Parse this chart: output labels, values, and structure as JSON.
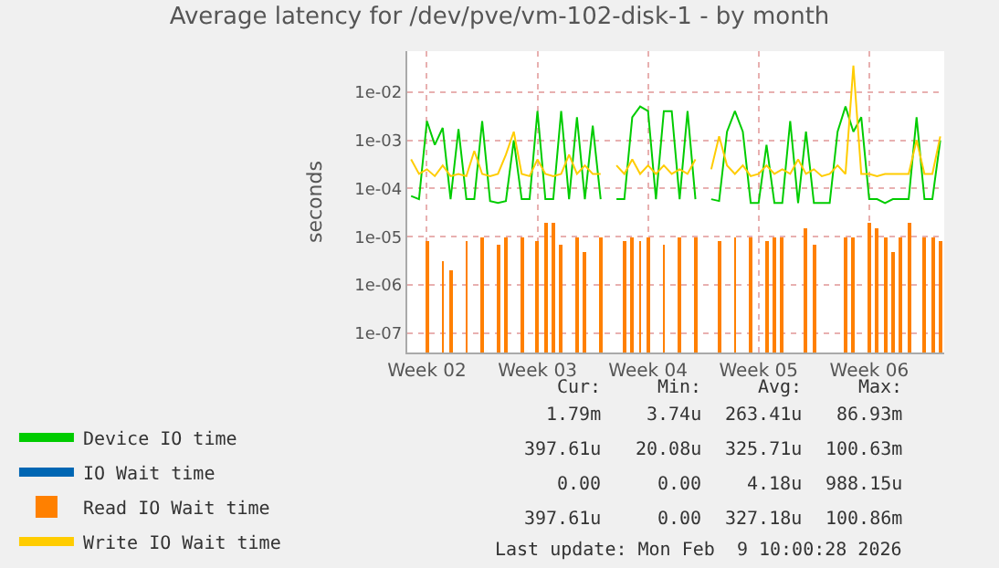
{
  "chart_data": {
    "type": "line",
    "title": "Average latency for /dev/pve/vm-102-disk-1 - by month",
    "ylabel": "seconds",
    "categories": [
      null,
      null,
      "Week 02",
      null,
      null,
      null,
      null,
      null,
      null,
      null,
      null,
      null,
      null,
      null,
      null,
      null,
      "Week 03",
      null,
      null,
      null,
      null,
      null,
      null,
      null,
      null,
      null,
      null,
      null,
      null,
      null,
      "Week 04",
      null,
      null,
      null,
      null,
      null,
      null,
      null,
      null,
      null,
      null,
      null,
      null,
      null,
      "Week 05",
      null,
      null,
      null,
      null,
      null,
      null,
      null,
      null,
      null,
      null,
      null,
      null,
      null,
      "Week 06",
      null,
      null,
      null,
      null,
      null,
      null,
      null,
      null,
      null
    ],
    "series": [
      {
        "name": "Device IO time",
        "color": "#00cc00",
        "values": [
          7e-05,
          6e-05,
          0.0025,
          0.0008,
          0.0018,
          6e-05,
          0.0017,
          6e-05,
          6e-05,
          0.0025,
          5.5e-05,
          5e-05,
          5.5e-05,
          0.001,
          6e-05,
          6e-05,
          0.004,
          6e-05,
          6e-05,
          0.004,
          6e-05,
          0.003,
          6e-05,
          0.002,
          6e-05,
          null,
          6e-05,
          6e-05,
          0.003,
          0.005,
          0.004,
          6e-05,
          0.004,
          0.004,
          6e-05,
          0.004,
          6e-05,
          null,
          6e-05,
          5.5e-05,
          0.0015,
          0.004,
          0.0015,
          5e-05,
          5e-05,
          0.0008,
          5e-05,
          5e-05,
          0.0025,
          5e-05,
          0.0015,
          5e-05,
          5e-05,
          5e-05,
          0.0015,
          0.005,
          0.0015,
          0.003,
          6e-05,
          6e-05,
          5e-05,
          6e-05,
          6e-05,
          6e-05,
          0.003,
          6e-05,
          6e-05,
          0.001
        ]
      },
      {
        "name": "IO Wait time",
        "color": "#0066b3",
        "values": [
          null,
          null,
          null,
          null,
          null,
          null,
          null,
          null,
          null,
          null,
          null,
          null,
          null,
          null,
          null,
          null,
          null,
          null,
          null,
          null,
          null,
          null,
          null,
          null,
          null,
          null,
          null,
          null,
          null,
          null,
          null,
          null,
          null,
          null,
          null,
          null,
          null,
          null,
          null,
          null,
          null,
          null,
          null,
          null,
          null,
          null,
          null,
          null,
          null,
          null,
          null,
          null,
          null,
          null,
          null,
          null,
          null,
          null,
          null,
          null,
          null,
          null,
          null,
          null,
          null,
          null,
          null,
          null
        ]
      },
      {
        "name": "Read IO Wait time",
        "color": "#ff8000",
        "type": "bar",
        "values": [
          null,
          null,
          8e-06,
          null,
          3e-06,
          2e-06,
          null,
          8e-06,
          null,
          1e-05,
          null,
          7e-06,
          1e-05,
          null,
          1e-05,
          null,
          8e-06,
          2e-05,
          2e-05,
          7e-06,
          null,
          1e-05,
          5e-06,
          null,
          1e-05,
          null,
          null,
          8e-06,
          1e-05,
          8e-06,
          1e-05,
          null,
          7e-06,
          null,
          1e-05,
          null,
          1e-05,
          null,
          null,
          8e-06,
          null,
          1e-05,
          null,
          1e-05,
          null,
          8e-06,
          1e-05,
          1e-05,
          null,
          null,
          1.5e-05,
          7e-06,
          null,
          null,
          null,
          1e-05,
          1e-05,
          null,
          2e-05,
          1.5e-05,
          1e-05,
          5e-06,
          1e-05,
          2e-05,
          null,
          1e-05,
          1e-05,
          8e-06
        ]
      },
      {
        "name": "Write IO Wait time",
        "color": "#ffcc00",
        "values": [
          0.0004,
          0.0002,
          0.00025,
          0.00018,
          0.0003,
          0.00018,
          0.0002,
          0.00018,
          0.0006,
          0.0002,
          0.00018,
          0.0002,
          0.0005,
          0.0015,
          0.0002,
          0.00018,
          0.0004,
          0.0002,
          0.00018,
          0.0002,
          0.0005,
          0.0002,
          0.0003,
          0.0002,
          0.0002,
          null,
          0.0003,
          0.0002,
          0.0004,
          0.0002,
          0.0003,
          0.0002,
          0.0003,
          0.0002,
          0.00025,
          0.0002,
          0.0004,
          null,
          0.00025,
          0.0012,
          0.0003,
          0.0002,
          0.0003,
          0.00018,
          0.0002,
          0.0003,
          0.0002,
          0.00025,
          0.0002,
          0.0004,
          0.0002,
          0.00025,
          0.00018,
          0.0002,
          0.0003,
          0.0002,
          0.035,
          0.0002,
          0.0002,
          0.00018,
          0.0002,
          0.0002,
          0.0002,
          0.0002,
          0.001,
          0.0002,
          0.0002,
          0.0012
        ]
      }
    ],
    "log": "y",
    "ylim": [
      4e-08,
      0.07
    ],
    "yticks": [
      {
        "value": 1e-07,
        "label": "1e-07"
      },
      {
        "value": 1e-06,
        "label": "1e-06"
      },
      {
        "value": 1e-05,
        "label": "1e-05"
      },
      {
        "value": 0.0001,
        "label": "1e-04"
      },
      {
        "value": 0.001,
        "label": "1e-03"
      },
      {
        "value": 0.01,
        "label": "1e-02"
      }
    ],
    "grid": true,
    "legend": "bottom",
    "annotations": [
      "Cur:",
      "Min:",
      "Avg:",
      "Max:",
      "1.79m",
      "3.74u",
      "263.41u",
      "86.93m",
      "397.61u",
      "20.08u",
      "325.71u",
      "100.63m",
      "0.00",
      "0.00",
      "4.18u",
      "988.15u",
      "397.61u",
      "0.00",
      "327.18u",
      "100.86m",
      "Last update: Mon Feb  9 10:00:28 2026"
    ]
  }
}
